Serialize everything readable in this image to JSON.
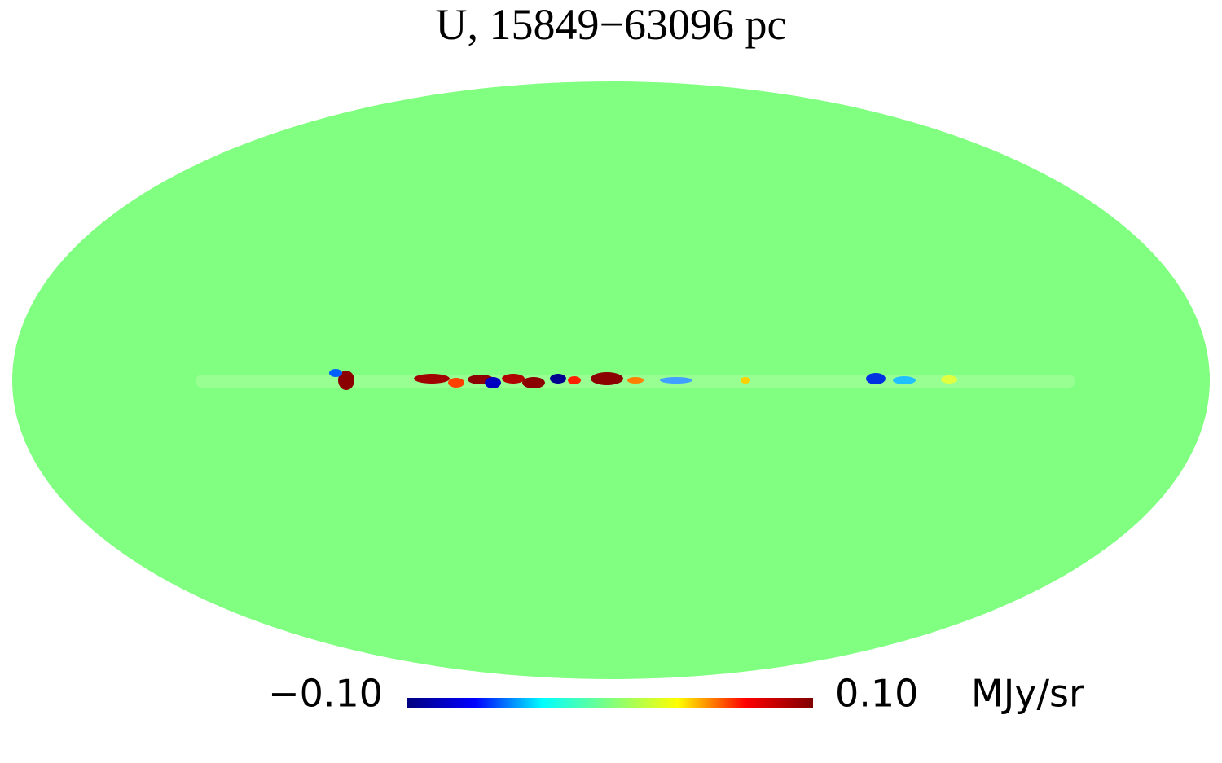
{
  "chart_data": {
    "type": "mollweide",
    "title": "U, 15849−63096 pc",
    "colorbar_label": "MJy/sr",
    "clim": [
      -0.1,
      0.1
    ],
    "cticks": [
      {
        "value": -0.1,
        "label": "−0.10"
      },
      {
        "value": 0.1,
        "label": "0.10"
      }
    ],
    "colormap": [
      "#00007f",
      "#0000ff",
      "#00ffff",
      "#7fff7f",
      "#ffff00",
      "#ff0000",
      "#7f0000"
    ],
    "background_color": "#80ff80"
  }
}
